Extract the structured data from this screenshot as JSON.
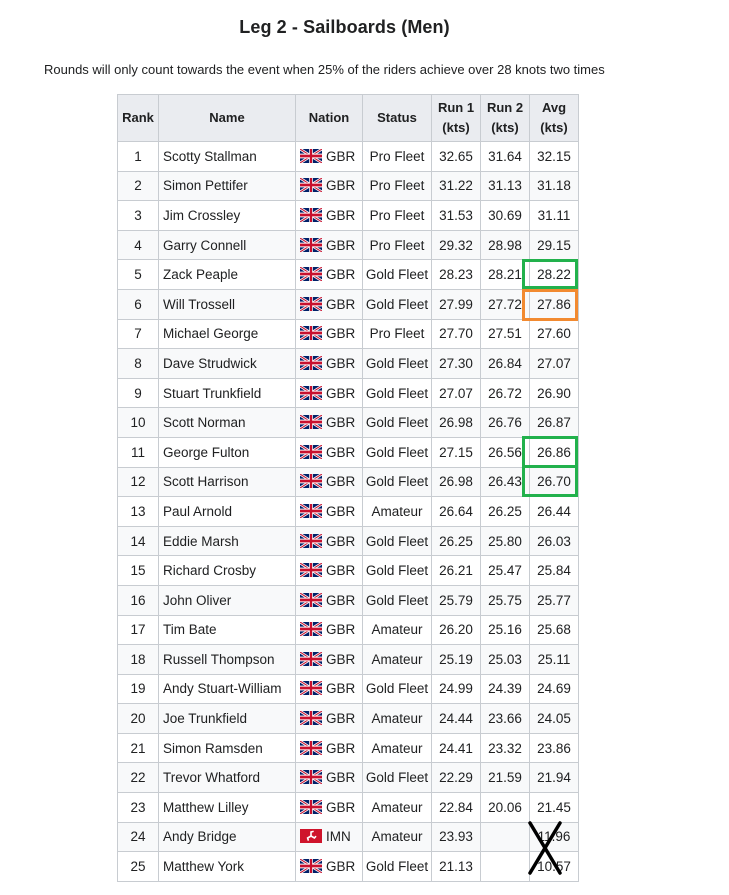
{
  "title": "Leg 2 - Sailboards (Men)",
  "note": "Rounds will only count towards the event when 25% of the riders achieve over 28 knots two times",
  "headers": {
    "rank": "Rank",
    "name": "Name",
    "nation": "Nation",
    "status": "Status",
    "run1_top": "Run 1",
    "run1_unit": "(kts)",
    "run2_top": "Run 2",
    "run2_unit": "(kts)",
    "avg_top": "Avg",
    "avg_unit": "(kts)"
  },
  "colors": {
    "green_box": "#22b14c",
    "orange_box": "#f28a30",
    "cross": "#000000"
  },
  "rows": [
    {
      "rank": "1",
      "name": "Scotty Stallman",
      "flag": "uk-flag-icon",
      "nation": "GBR",
      "status": "Pro Fleet",
      "run1": "32.65",
      "run2": "31.64",
      "avg": "32.15"
    },
    {
      "rank": "2",
      "name": "Simon Pettifer",
      "flag": "uk-flag-icon",
      "nation": "GBR",
      "status": "Pro Fleet",
      "run1": "31.22",
      "run2": "31.13",
      "avg": "31.18"
    },
    {
      "rank": "3",
      "name": "Jim Crossley",
      "flag": "uk-flag-icon",
      "nation": "GBR",
      "status": "Pro Fleet",
      "run1": "31.53",
      "run2": "30.69",
      "avg": "31.11"
    },
    {
      "rank": "4",
      "name": "Garry Connell",
      "flag": "uk-flag-icon",
      "nation": "GBR",
      "status": "Pro Fleet",
      "run1": "29.32",
      "run2": "28.98",
      "avg": "29.15"
    },
    {
      "rank": "5",
      "name": "Zack Peaple",
      "flag": "uk-flag-icon",
      "nation": "GBR",
      "status": "Gold Fleet",
      "run1": "28.23",
      "run2": "28.21",
      "avg": "28.22"
    },
    {
      "rank": "6",
      "name": "Will Trossell",
      "flag": "uk-flag-icon",
      "nation": "GBR",
      "status": "Gold Fleet",
      "run1": "27.99",
      "run2": "27.72",
      "avg": "27.86"
    },
    {
      "rank": "7",
      "name": "Michael George",
      "flag": "uk-flag-icon",
      "nation": "GBR",
      "status": "Pro Fleet",
      "run1": "27.70",
      "run2": "27.51",
      "avg": "27.60"
    },
    {
      "rank": "8",
      "name": "Dave Strudwick",
      "flag": "uk-flag-icon",
      "nation": "GBR",
      "status": "Gold Fleet",
      "run1": "27.30",
      "run2": "26.84",
      "avg": "27.07"
    },
    {
      "rank": "9",
      "name": "Stuart Trunkfield",
      "flag": "uk-flag-icon",
      "nation": "GBR",
      "status": "Gold Fleet",
      "run1": "27.07",
      "run2": "26.72",
      "avg": "26.90"
    },
    {
      "rank": "10",
      "name": "Scott Norman",
      "flag": "uk-flag-icon",
      "nation": "GBR",
      "status": "Gold Fleet",
      "run1": "26.98",
      "run2": "26.76",
      "avg": "26.87"
    },
    {
      "rank": "11",
      "name": "George Fulton",
      "flag": "uk-flag-icon",
      "nation": "GBR",
      "status": "Gold Fleet",
      "run1": "27.15",
      "run2": "26.56",
      "avg": "26.86"
    },
    {
      "rank": "12",
      "name": "Scott Harrison",
      "flag": "uk-flag-icon",
      "nation": "GBR",
      "status": "Gold Fleet",
      "run1": "26.98",
      "run2": "26.43",
      "avg": "26.70"
    },
    {
      "rank": "13",
      "name": "Paul Arnold",
      "flag": "uk-flag-icon",
      "nation": "GBR",
      "status": "Amateur",
      "run1": "26.64",
      "run2": "26.25",
      "avg": "26.44"
    },
    {
      "rank": "14",
      "name": "Eddie Marsh",
      "flag": "uk-flag-icon",
      "nation": "GBR",
      "status": "Gold Fleet",
      "run1": "26.25",
      "run2": "25.80",
      "avg": "26.03"
    },
    {
      "rank": "15",
      "name": "Richard Crosby",
      "flag": "uk-flag-icon",
      "nation": "GBR",
      "status": "Gold Fleet",
      "run1": "26.21",
      "run2": "25.47",
      "avg": "25.84"
    },
    {
      "rank": "16",
      "name": "John Oliver",
      "flag": "uk-flag-icon",
      "nation": "GBR",
      "status": "Gold Fleet",
      "run1": "25.79",
      "run2": "25.75",
      "avg": "25.77"
    },
    {
      "rank": "17",
      "name": "Tim Bate",
      "flag": "uk-flag-icon",
      "nation": "GBR",
      "status": "Amateur",
      "run1": "26.20",
      "run2": "25.16",
      "avg": "25.68"
    },
    {
      "rank": "18",
      "name": "Russell Thompson",
      "flag": "uk-flag-icon",
      "nation": "GBR",
      "status": "Amateur",
      "run1": "25.19",
      "run2": "25.03",
      "avg": "25.11"
    },
    {
      "rank": "19",
      "name": "Andy Stuart-William",
      "flag": "uk-flag-icon",
      "nation": "GBR",
      "status": "Gold Fleet",
      "run1": "24.99",
      "run2": "24.39",
      "avg": "24.69"
    },
    {
      "rank": "20",
      "name": "Joe Trunkfield",
      "flag": "uk-flag-icon",
      "nation": "GBR",
      "status": "Amateur",
      "run1": "24.44",
      "run2": "23.66",
      "avg": "24.05"
    },
    {
      "rank": "21",
      "name": "Simon Ramsden",
      "flag": "uk-flag-icon",
      "nation": "GBR",
      "status": "Amateur",
      "run1": "24.41",
      "run2": "23.32",
      "avg": "23.86"
    },
    {
      "rank": "22",
      "name": "Trevor Whatford",
      "flag": "uk-flag-icon",
      "nation": "GBR",
      "status": "Gold Fleet",
      "run1": "22.29",
      "run2": "21.59",
      "avg": "21.94"
    },
    {
      "rank": "23",
      "name": "Matthew Lilley",
      "flag": "uk-flag-icon",
      "nation": "GBR",
      "status": "Amateur",
      "run1": "22.84",
      "run2": "20.06",
      "avg": "21.45"
    },
    {
      "rank": "24",
      "name": "Andy Bridge",
      "flag": "isle-of-man-flag-icon",
      "nation": "IMN",
      "status": "Amateur",
      "run1": "23.93",
      "run2": "",
      "avg": "11.96"
    },
    {
      "rank": "25",
      "name": "Matthew York",
      "flag": "uk-flag-icon",
      "nation": "GBR",
      "status": "Gold Fleet",
      "run1": "21.13",
      "run2": "",
      "avg": "10.57"
    }
  ]
}
